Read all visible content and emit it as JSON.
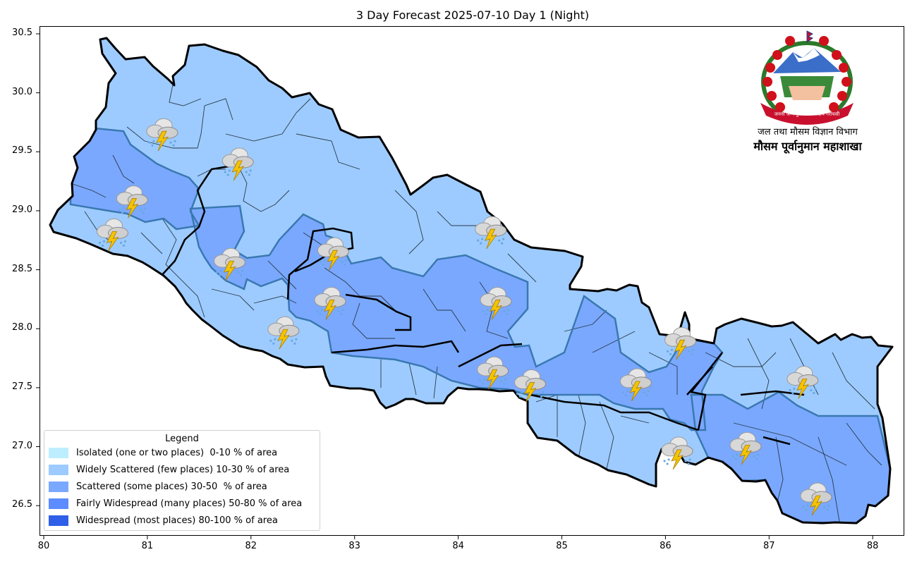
{
  "title": "3 Day Forecast 2025-07-10 Day 1 (Night)",
  "axes": {
    "x_ticks": [
      "80",
      "81",
      "82",
      "83",
      "84",
      "85",
      "86",
      "87",
      "88"
    ],
    "y_ticks": [
      "30.5",
      "30.0",
      "29.5",
      "29.0",
      "28.5",
      "28.0",
      "27.5",
      "27.0",
      "26.5"
    ]
  },
  "legend": {
    "title": "Legend",
    "entries": [
      {
        "label": "Isolated (one or two places)  0-10 % of area",
        "color": "#bdeeff"
      },
      {
        "label": "Widely Scattered (few places) 10-30 % of area",
        "color": "#9dcbff"
      },
      {
        "label": "Scattered (some places) 30-50  % of area",
        "color": "#7aa8ff"
      },
      {
        "label": "Fairly Widespread (many places) 50-80 % of area",
        "color": "#5c8cff"
      },
      {
        "label": "Widespread (most places) 80-100 % of area",
        "color": "#2f5fe8"
      }
    ]
  },
  "header": {
    "dept_name": "जल तथा मौसम विज्ञान विभाग",
    "division_name": "मौसम पूर्वानुमान महाशाखा",
    "emblem_text": "जननी जन्मभूमिश्च स्वर्गादपि गरीयसी"
  },
  "map": {
    "icon": "thunderstorm-rain-icon",
    "storm_icons": [
      {
        "lon": 81.13,
        "lat": 29.65
      },
      {
        "lon": 81.86,
        "lat": 29.4
      },
      {
        "lon": 80.84,
        "lat": 29.08
      },
      {
        "lon": 80.65,
        "lat": 28.8
      },
      {
        "lon": 81.78,
        "lat": 28.55
      },
      {
        "lon": 82.78,
        "lat": 28.64
      },
      {
        "lon": 84.3,
        "lat": 28.82
      },
      {
        "lon": 82.75,
        "lat": 28.22
      },
      {
        "lon": 82.3,
        "lat": 27.97
      },
      {
        "lon": 84.35,
        "lat": 28.22
      },
      {
        "lon": 84.32,
        "lat": 27.63
      },
      {
        "lon": 84.68,
        "lat": 27.52
      },
      {
        "lon": 85.7,
        "lat": 27.53
      },
      {
        "lon": 86.13,
        "lat": 27.88
      },
      {
        "lon": 86.1,
        "lat": 26.95
      },
      {
        "lon": 86.76,
        "lat": 26.99
      },
      {
        "lon": 87.31,
        "lat": 27.55
      },
      {
        "lon": 87.44,
        "lat": 26.56
      }
    ],
    "colors": {
      "widely_scattered": "#9dcbff",
      "scattered": "#7aa8ff",
      "border": "#000000",
      "district_line": "#2a3a4a",
      "zone_edge": "#3a78b0"
    }
  }
}
